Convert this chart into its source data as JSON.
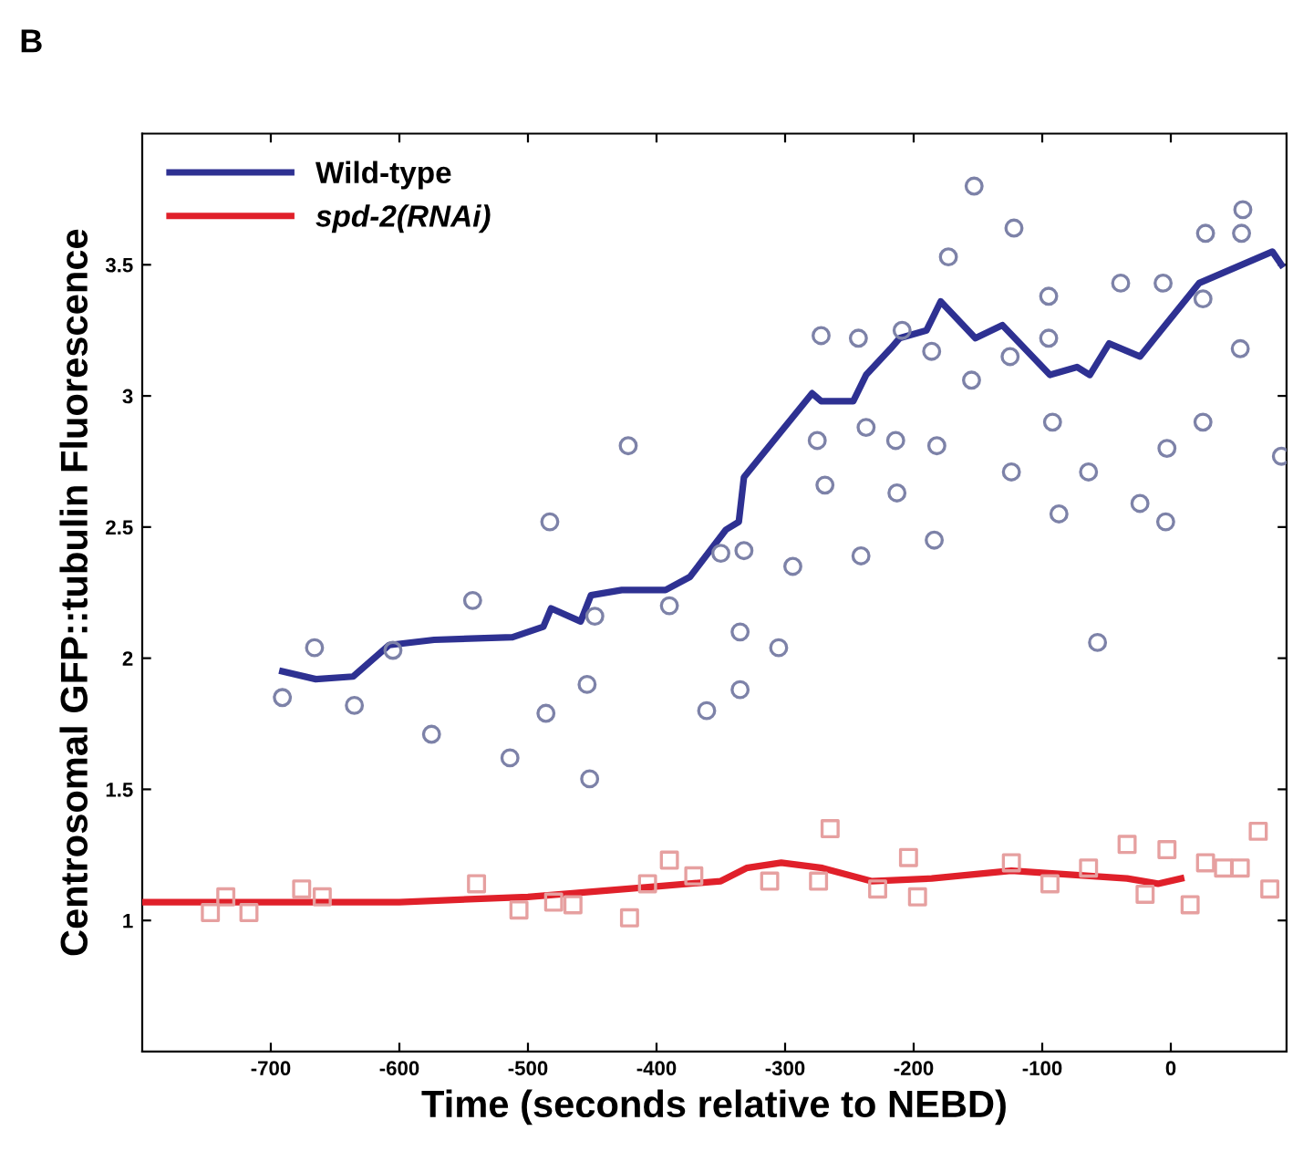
{
  "chart_data": {
    "type": "line",
    "xlabel": "Time (seconds relative to NEBD)",
    "ylabel": "Centrosomal GFP::tubulin Fluorescence",
    "annotations": [
      "B"
    ],
    "xlim": [
      -800,
      90
    ],
    "ylim": [
      0.5,
      4
    ],
    "xticks": [
      -700,
      -600,
      -500,
      -400,
      -300,
      -200,
      -100,
      0
    ],
    "yticks": [
      1,
      1.5,
      2,
      2.5,
      3,
      3.5
    ],
    "grid": false,
    "legend": "top left",
    "series": [
      {
        "type": "scatter",
        "marker": "circle",
        "color": "#7d82a8",
        "x": [
          -691,
          -666,
          -635,
          -605,
          -575,
          -543,
          -514,
          -483,
          -486,
          -454,
          -452,
          -448,
          -422,
          -390,
          -361,
          -350,
          -332,
          -335,
          -335,
          -305,
          -294,
          -275,
          -272,
          -269,
          -243,
          -237,
          -241,
          -214,
          -213,
          -209,
          -186,
          -184,
          -182,
          -173,
          -155,
          -153,
          -125,
          -124,
          -122,
          -95,
          -95,
          -92,
          -87,
          -64,
          -57,
          -39,
          -24,
          -6,
          -3,
          -4,
          25,
          27,
          25,
          54,
          55,
          56,
          86
        ],
        "values": [
          1.85,
          2.04,
          1.82,
          2.03,
          1.71,
          2.22,
          1.62,
          2.52,
          1.79,
          1.9,
          1.54,
          2.16,
          2.81,
          2.2,
          1.8,
          2.4,
          2.41,
          2.1,
          1.88,
          2.04,
          2.35,
          2.83,
          3.23,
          2.66,
          3.22,
          2.88,
          2.39,
          2.83,
          2.63,
          3.25,
          3.17,
          2.45,
          2.81,
          3.53,
          3.06,
          3.8,
          3.15,
          2.71,
          3.64,
          3.38,
          3.22,
          2.9,
          2.55,
          2.71,
          2.06,
          3.43,
          2.59,
          3.43,
          2.8,
          2.52,
          2.9,
          3.62,
          3.37,
          3.18,
          3.62,
          3.71,
          2.77
        ]
      },
      {
        "type": "scatter",
        "marker": "square",
        "color": "#e6a0a0",
        "x": [
          -747,
          -735,
          -717,
          -676,
          -660,
          -540,
          -507,
          -480,
          -465,
          -421,
          -407,
          -390,
          -371,
          -312,
          -274,
          -265,
          -228,
          -204,
          -197,
          -124,
          -94,
          -64,
          -34,
          -20,
          -3,
          15,
          27,
          41,
          54,
          68,
          77
        ],
        "values": [
          1.03,
          1.09,
          1.03,
          1.12,
          1.09,
          1.14,
          1.04,
          1.07,
          1.06,
          1.01,
          1.14,
          1.23,
          1.17,
          1.15,
          1.15,
          1.35,
          1.12,
          1.24,
          1.09,
          1.22,
          1.14,
          1.2,
          1.29,
          1.1,
          1.27,
          1.06,
          1.22,
          1.2,
          1.2,
          1.34,
          1.12
        ]
      },
      {
        "name": "Wild-type",
        "color": "#2e3192",
        "x": [
          -691,
          -665,
          -636,
          -608,
          -573,
          -512,
          -488,
          -482,
          -459,
          -451,
          -427,
          -393,
          -374,
          -346,
          -336,
          -332,
          -279,
          -272,
          -247,
          -237,
          -218,
          -211,
          -190,
          -179,
          -152,
          -131,
          -94,
          -73,
          -63,
          -48,
          -24,
          22,
          79,
          86
        ],
        "values": [
          1.95,
          1.92,
          1.93,
          2.05,
          2.07,
          2.08,
          2.12,
          2.19,
          2.14,
          2.24,
          2.26,
          2.26,
          2.31,
          2.49,
          2.52,
          2.69,
          3.01,
          2.98,
          2.98,
          3.08,
          3.18,
          3.22,
          3.25,
          3.36,
          3.22,
          3.27,
          3.08,
          3.11,
          3.08,
          3.2,
          3.15,
          3.43,
          3.55,
          3.5
        ]
      },
      {
        "name": "spd-2(RNAi)",
        "color": "#e0202a",
        "x": [
          -800,
          -700,
          -600,
          -500,
          -400,
          -350,
          -330,
          -303,
          -271,
          -233,
          -186,
          -124,
          -34,
          -10,
          8
        ],
        "values": [
          1.07,
          1.07,
          1.07,
          1.09,
          1.13,
          1.15,
          1.2,
          1.22,
          1.2,
          1.15,
          1.16,
          1.19,
          1.16,
          1.14,
          1.16
        ]
      }
    ]
  }
}
